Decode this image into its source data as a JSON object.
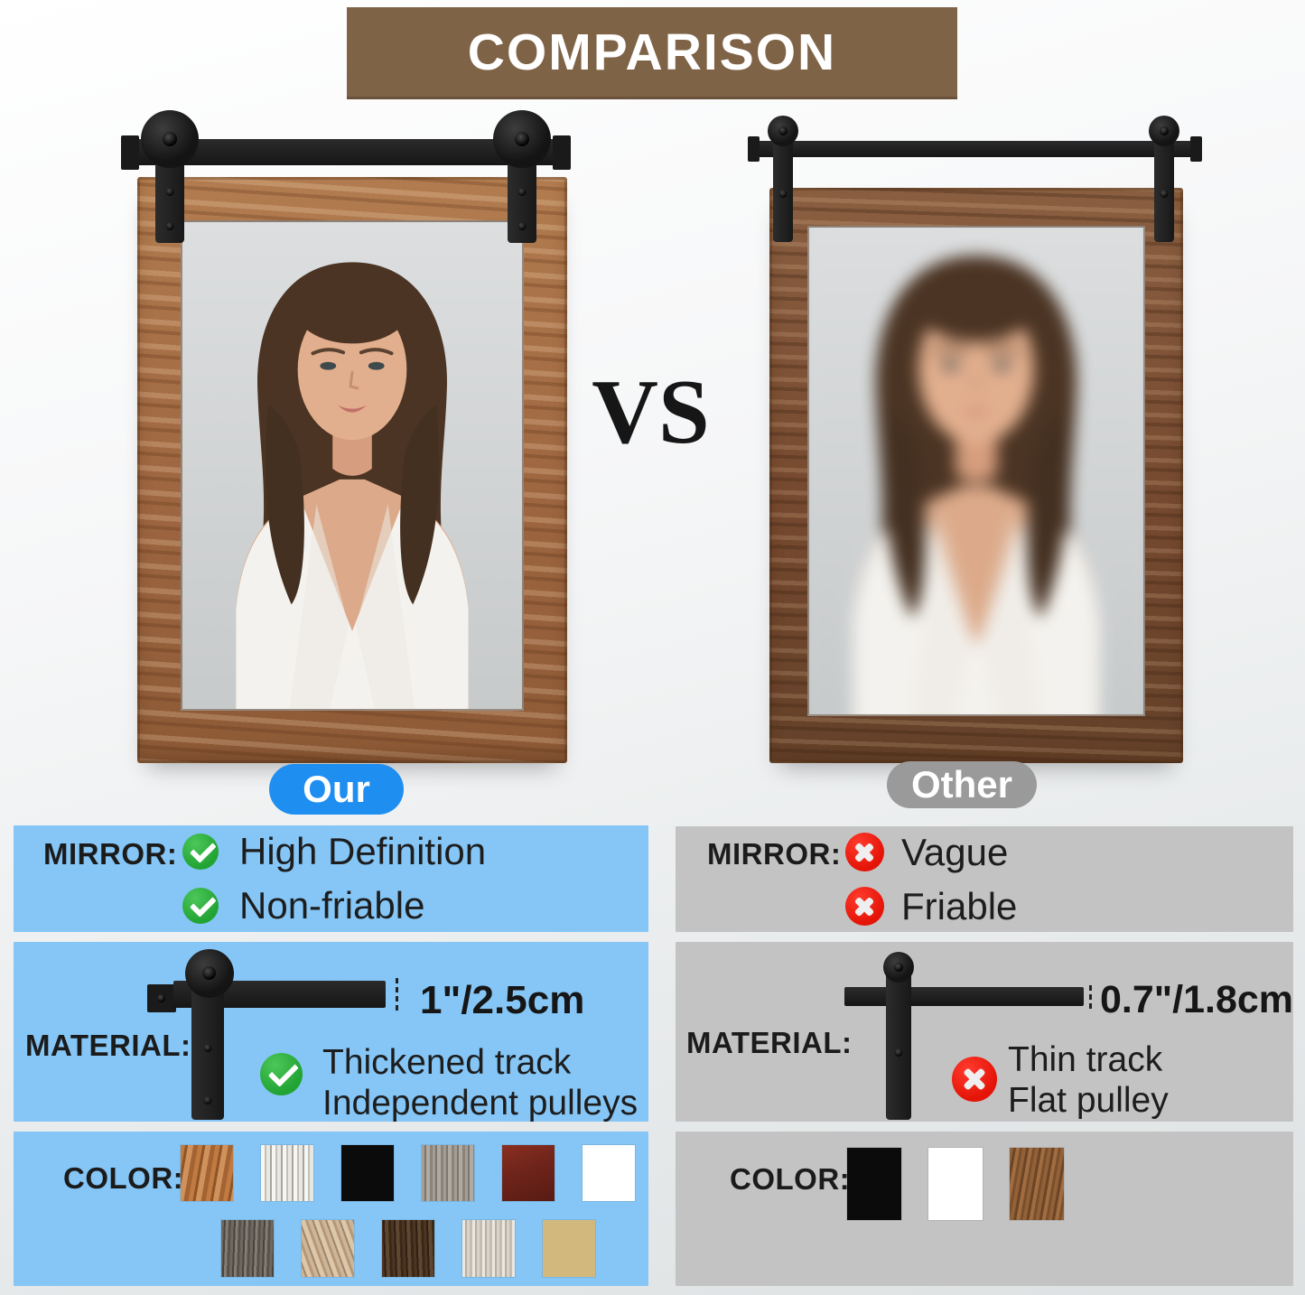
{
  "banner": {
    "title": "COMPARISON",
    "bg": "#7f6347"
  },
  "vs_label": "VS",
  "colors": {
    "accent_blue": "#1e8ef0",
    "panel_blue": "#85c6f6",
    "pill_gray": "#9a9a9a",
    "panel_gray": "#c3c3c3",
    "banner_brown": "#7f6347",
    "check_green": "#2aae3c",
    "cross_red": "#ea1409",
    "track_black": "#1d1d1d"
  },
  "left": {
    "pill": {
      "label": "Our"
    },
    "mirror": {
      "label": "MIRROR:",
      "rows": [
        {
          "icon": "check-icon",
          "text": "High Definition"
        },
        {
          "icon": "check-icon",
          "text": "Non-friable"
        }
      ]
    },
    "material": {
      "label": "MATERIAL:",
      "size": "1\"/2.5cm",
      "icon": "check-icon",
      "lines": [
        "Thickened track",
        "Independent pulleys"
      ]
    },
    "color": {
      "label": "COLOR:",
      "swatches": [
        {
          "name": "rustic-brown-wood",
          "bg": "repeating-linear-gradient(100deg,#c07a42 0 5px,#8f5526 5px 8px,#d0925c 8px 14px,#a36332 14px 19px)"
        },
        {
          "name": "whitewash-wood",
          "bg": "repeating-linear-gradient(90deg,#f7f6f3 0 4px,#c3c0ba 4px 6px,#e9e7e1 6px 10px,#a7a49d 10px 12px)"
        },
        {
          "name": "black",
          "bg": "#0b0b0b"
        },
        {
          "name": "gray-wood",
          "bg": "repeating-linear-gradient(90deg,#a39d94 0 3px,#7c766e 3px 5px,#b0aaa1 5px 9px,#8a847c 9px 12px)"
        },
        {
          "name": "red-mahogany",
          "bg": "linear-gradient(160deg,#8a2f20 0%,#6e241a 45%,#581b13 100%)"
        },
        {
          "name": "white",
          "bg": "#ffffff"
        },
        {
          "name": "weathered-dark-gray-wood",
          "bg": "repeating-linear-gradient(92deg,#6e6860 0 3px,#49443e 3px 5px,#837c72 5px 8px,#57524b 8px 11px)"
        },
        {
          "name": "tan-weathered-wood",
          "bg": "repeating-linear-gradient(70deg,#cdb697 0 4px,#a1856a 4px 6px,#dcc7a8 6px 11px,#b59877 11px 14px)"
        },
        {
          "name": "dark-walnut-wood",
          "bg": "repeating-linear-gradient(88deg,#4d3523 0 3px,#2f1f13 3px 5px,#5f4630 5px 9px,#3a2817 9px 12px)"
        },
        {
          "name": "light-gray-weathered-wood",
          "bg": "repeating-linear-gradient(90deg,#ece8e1 0 3px,#b5afa4 3px 5px,#d9d3c8 5px 8px,#c4beb2 8px 11px)"
        },
        {
          "name": "natural-pine-wood",
          "bg": "repeating-linear-gradient(90deg,#ecd9ab 0 4px,#d3b87e 4px 7px,#f2e4bf 7px 12px,#dfc globally#000 0 0)"
        }
      ]
    }
  },
  "right": {
    "pill": {
      "label": "Other"
    },
    "mirror": {
      "label": "MIRROR:",
      "rows": [
        {
          "icon": "cross-icon",
          "text": "Vague"
        },
        {
          "icon": "cross-icon",
          "text": "Friable"
        }
      ]
    },
    "material": {
      "label": "MATERIAL:",
      "size": "0.7\"/1.8cm",
      "icon": "cross-icon",
      "lines": [
        "Thin track",
        "Flat pulley"
      ]
    },
    "color": {
      "label": "COLOR:",
      "swatches": [
        {
          "name": "black",
          "bg": "#0b0b0b"
        },
        {
          "name": "white",
          "bg": "#ffffff"
        },
        {
          "name": "brown-wood",
          "bg": "repeating-linear-gradient(100deg,#91613a 0 4px,#6d4424 4px 7px,#a06d42 7px 11px,#7c4f2b 11px 14px)"
        }
      ]
    }
  }
}
